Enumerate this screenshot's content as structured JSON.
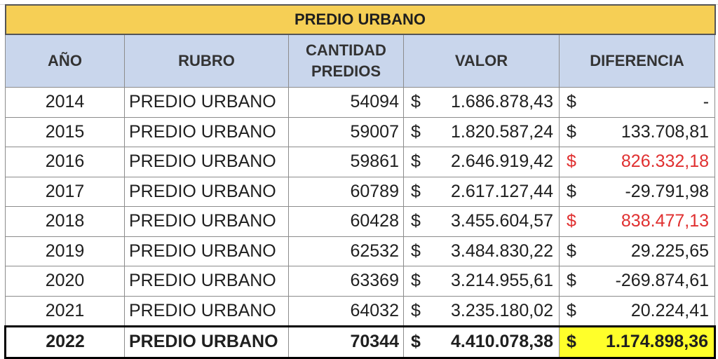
{
  "table": {
    "title": "PREDIO URBANO",
    "headers": {
      "year": "AÑO",
      "rubro": "RUBRO",
      "qty_line1": "CANTIDAD",
      "qty_line2": "PREDIOS",
      "value": "VALOR",
      "diff": "DIFERENCIA"
    },
    "currency_symbol": "$",
    "rows": [
      {
        "year": "2014",
        "rubro": "PREDIO URBANO",
        "qty": "54094",
        "value": "1.686.878,43",
        "diff": "-",
        "highlight": false
      },
      {
        "year": "2015",
        "rubro": "PREDIO URBANO",
        "qty": "59007",
        "value": "1.820.587,24",
        "diff": "133.708,81",
        "highlight": false
      },
      {
        "year": "2016",
        "rubro": "PREDIO URBANO",
        "qty": "59861",
        "value": "2.646.919,42",
        "diff": "826.332,18",
        "highlight": true
      },
      {
        "year": "2017",
        "rubro": "PREDIO URBANO",
        "qty": "60789",
        "value": "2.617.127,44",
        "diff": "-29.791,98",
        "highlight": false
      },
      {
        "year": "2018",
        "rubro": "PREDIO URBANO",
        "qty": "60428",
        "value": "3.455.604,57",
        "diff": "838.477,13",
        "highlight": true
      },
      {
        "year": "2019",
        "rubro": "PREDIO URBANO",
        "qty": "62532",
        "value": "3.484.830,22",
        "diff": "29.225,65",
        "highlight": false
      },
      {
        "year": "2020",
        "rubro": "PREDIO URBANO",
        "qty": "63369",
        "value": "3.214.955,61",
        "diff": "-269.874,61",
        "highlight": false
      },
      {
        "year": "2021",
        "rubro": "PREDIO URBANO",
        "qty": "64032",
        "value": "3.235.180,02",
        "diff": "20.224,41",
        "highlight": false
      }
    ],
    "total": {
      "year": "2022",
      "rubro": "PREDIO URBANO",
      "qty": "70344",
      "value": "4.410.078,38",
      "diff": "1.174.898,36"
    },
    "colors": {
      "title_bg": "#f6cf55",
      "header_bg": "#c9d6ec",
      "highlight_text": "#e03030",
      "total_diff_bg": "#ffff2a"
    }
  }
}
